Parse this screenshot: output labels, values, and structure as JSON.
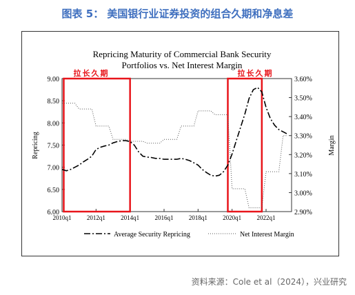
{
  "figure_title": "图表 5：  美国银行业证券投资的组合久期和净息差",
  "source": "资料来源：Cole et al（2024），兴业研究",
  "chart_data": {
    "type": "line",
    "title_line1": "Repricing Maturity of Commercial Bank Security",
    "title_line2": "Portfolios  vs. Net Interest Margin",
    "ylabel_left": "Repricing",
    "ylabel_right": "Margin",
    "ylim_left": [
      6.0,
      9.0
    ],
    "ylim_right": [
      2.9,
      3.6
    ],
    "left_ticks": [
      "9.00",
      "8.50",
      "8.00",
      "7.50",
      "7.00",
      "6.50",
      "6.00"
    ],
    "right_ticks": [
      "3.60%",
      "3.50%",
      "3.40%",
      "3.30%",
      "3.20%",
      "3.10%",
      "3.00%",
      "2.90%"
    ],
    "x_ticks": [
      "2010q1",
      "2012q1",
      "2014q1",
      "2016q1",
      "2018q1",
      "2020q1",
      "2022q1"
    ],
    "xlim": [
      2010.0,
      2023.5
    ],
    "annotations": [
      {
        "label": "拉长久期",
        "x_start": 2010.1,
        "x_end": 2014.0
      },
      {
        "label": "拉长久期",
        "x_start": 2019.75,
        "x_end": 2021.75
      }
    ],
    "series": [
      {
        "name": "Average Security Repricing",
        "axis": "left",
        "style": "dash-dot",
        "points": [
          [
            2010.0,
            6.95
          ],
          [
            2010.25,
            6.92
          ],
          [
            2010.5,
            6.95
          ],
          [
            2010.75,
            7.0
          ],
          [
            2011.0,
            7.05
          ],
          [
            2011.25,
            7.12
          ],
          [
            2011.5,
            7.18
          ],
          [
            2011.75,
            7.25
          ],
          [
            2012.0,
            7.4
          ],
          [
            2012.25,
            7.45
          ],
          [
            2012.5,
            7.48
          ],
          [
            2012.75,
            7.5
          ],
          [
            2013.0,
            7.55
          ],
          [
            2013.25,
            7.58
          ],
          [
            2013.5,
            7.6
          ],
          [
            2013.75,
            7.6
          ],
          [
            2014.0,
            7.58
          ],
          [
            2014.25,
            7.5
          ],
          [
            2014.5,
            7.35
          ],
          [
            2014.75,
            7.25
          ],
          [
            2015.0,
            7.23
          ],
          [
            2015.25,
            7.22
          ],
          [
            2015.5,
            7.2
          ],
          [
            2015.75,
            7.2
          ],
          [
            2016.0,
            7.18
          ],
          [
            2016.25,
            7.18
          ],
          [
            2016.5,
            7.18
          ],
          [
            2016.75,
            7.18
          ],
          [
            2017.0,
            7.2
          ],
          [
            2017.25,
            7.18
          ],
          [
            2017.5,
            7.15
          ],
          [
            2017.75,
            7.1
          ],
          [
            2018.0,
            7.05
          ],
          [
            2018.25,
            6.95
          ],
          [
            2018.5,
            6.88
          ],
          [
            2018.75,
            6.82
          ],
          [
            2019.0,
            6.8
          ],
          [
            2019.25,
            6.82
          ],
          [
            2019.5,
            6.9
          ],
          [
            2019.75,
            7.05
          ],
          [
            2020.0,
            7.3
          ],
          [
            2020.25,
            7.6
          ],
          [
            2020.5,
            7.9
          ],
          [
            2020.75,
            8.2
          ],
          [
            2021.0,
            8.55
          ],
          [
            2021.25,
            8.75
          ],
          [
            2021.5,
            8.8
          ],
          [
            2021.75,
            8.7
          ],
          [
            2022.0,
            8.35
          ],
          [
            2022.25,
            8.1
          ],
          [
            2022.5,
            7.95
          ],
          [
            2022.75,
            7.85
          ],
          [
            2023.0,
            7.8
          ],
          [
            2023.25,
            7.75
          ]
        ]
      },
      {
        "name": "Net Interest Margin",
        "axis": "right",
        "style": "dotted",
        "points": [
          [
            2010.0,
            3.47
          ],
          [
            2010.25,
            3.47
          ],
          [
            2010.5,
            3.47
          ],
          [
            2010.75,
            3.47
          ],
          [
            2011.0,
            3.44
          ],
          [
            2011.25,
            3.44
          ],
          [
            2011.5,
            3.44
          ],
          [
            2011.75,
            3.44
          ],
          [
            2012.0,
            3.35
          ],
          [
            2012.25,
            3.35
          ],
          [
            2012.5,
            3.35
          ],
          [
            2012.75,
            3.35
          ],
          [
            2013.0,
            3.28
          ],
          [
            2013.25,
            3.28
          ],
          [
            2013.5,
            3.28
          ],
          [
            2013.75,
            3.28
          ],
          [
            2014.0,
            3.27
          ],
          [
            2014.25,
            3.27
          ],
          [
            2014.5,
            3.27
          ],
          [
            2014.75,
            3.27
          ],
          [
            2015.0,
            3.26
          ],
          [
            2015.25,
            3.26
          ],
          [
            2015.5,
            3.26
          ],
          [
            2015.75,
            3.26
          ],
          [
            2016.0,
            3.28
          ],
          [
            2016.25,
            3.28
          ],
          [
            2016.5,
            3.28
          ],
          [
            2016.75,
            3.28
          ],
          [
            2017.0,
            3.35
          ],
          [
            2017.25,
            3.35
          ],
          [
            2017.5,
            3.35
          ],
          [
            2017.75,
            3.35
          ],
          [
            2018.0,
            3.43
          ],
          [
            2018.25,
            3.43
          ],
          [
            2018.5,
            3.43
          ],
          [
            2018.75,
            3.43
          ],
          [
            2019.0,
            3.41
          ],
          [
            2019.25,
            3.41
          ],
          [
            2019.5,
            3.41
          ],
          [
            2019.75,
            3.41
          ],
          [
            2020.0,
            3.02
          ],
          [
            2020.25,
            3.02
          ],
          [
            2020.5,
            3.02
          ],
          [
            2020.75,
            3.02
          ],
          [
            2021.0,
            2.92
          ],
          [
            2021.25,
            2.92
          ],
          [
            2021.5,
            2.92
          ],
          [
            2021.75,
            2.92
          ],
          [
            2022.0,
            3.11
          ],
          [
            2022.25,
            3.11
          ],
          [
            2022.5,
            3.11
          ],
          [
            2022.75,
            3.11
          ],
          [
            2023.0,
            3.3
          ],
          [
            2023.25,
            3.3
          ]
        ]
      }
    ]
  }
}
